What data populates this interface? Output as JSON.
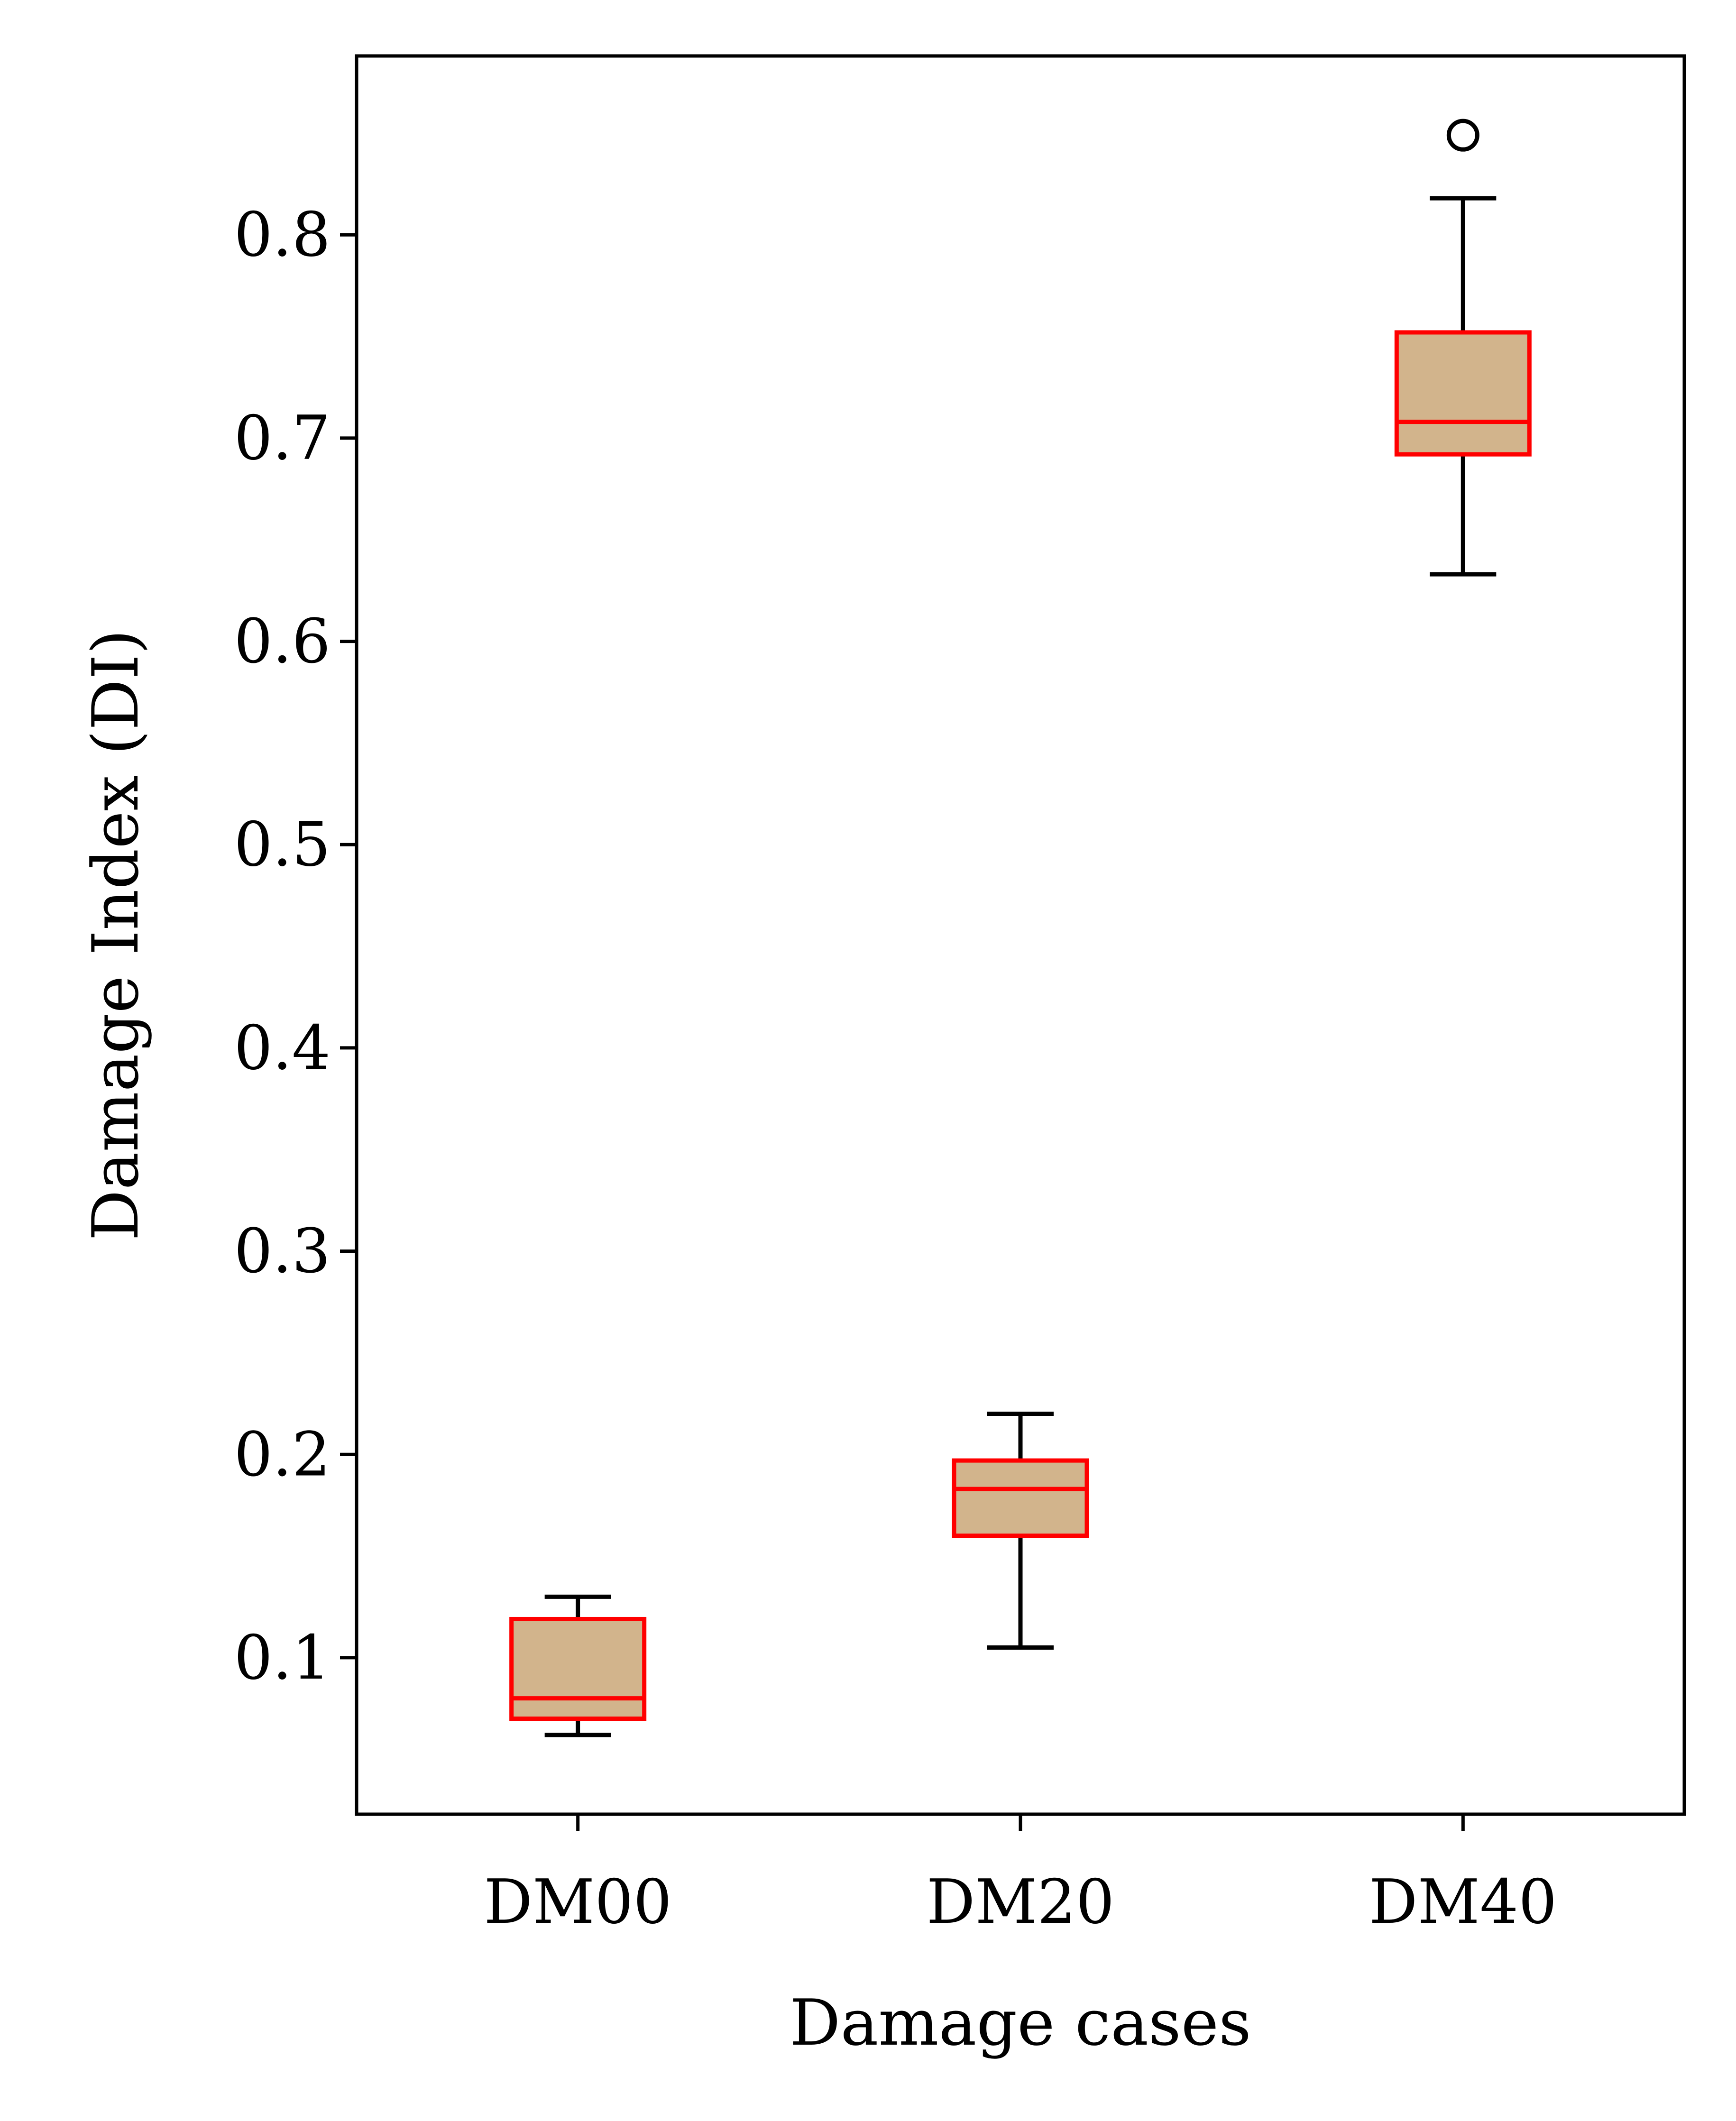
{
  "chart_data": {
    "type": "box",
    "xlabel": "Damage cases",
    "ylabel": "Damage Index (DI)",
    "categories": [
      "DM00",
      "DM20",
      "DM40"
    ],
    "ylim": [
      0.023,
      0.888
    ],
    "yticks": [
      0.1,
      0.2,
      0.3,
      0.4,
      0.5,
      0.6,
      0.7,
      0.8
    ],
    "ytick_labels": [
      "0.1",
      "0.2",
      "0.3",
      "0.4",
      "0.5",
      "0.6",
      "0.7",
      "0.8"
    ],
    "boxes": [
      {
        "category": "DM00",
        "whisker_low": 0.062,
        "q1": 0.07,
        "median": 0.08,
        "q3": 0.119,
        "whisker_high": 0.13,
        "outliers": []
      },
      {
        "category": "DM20",
        "whisker_low": 0.105,
        "q1": 0.16,
        "median": 0.183,
        "q3": 0.197,
        "whisker_high": 0.22,
        "outliers": []
      },
      {
        "category": "DM40",
        "whisker_low": 0.633,
        "q1": 0.692,
        "median": 0.708,
        "q3": 0.752,
        "whisker_high": 0.818,
        "outliers": [
          0.849
        ]
      }
    ],
    "box_fill": "#D2B48C",
    "box_edge": "#FF0000",
    "whisker_color": "#000000",
    "grid": false,
    "legend": "none"
  }
}
